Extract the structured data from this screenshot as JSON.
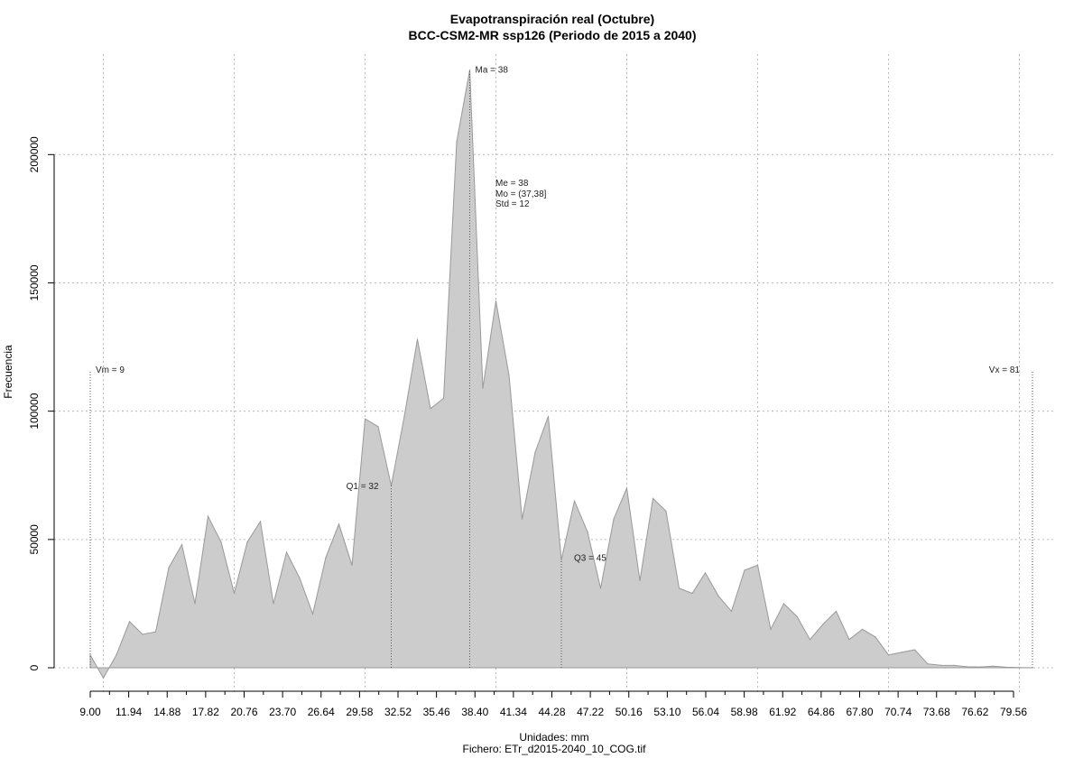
{
  "chart_data": {
    "type": "area",
    "title": "Evapotranspiración real (Octubre)",
    "subtitle": "BCC-CSM2-MR ssp126 (Periodo de 2015 a 2040)",
    "xlabel": "Unidades: mm",
    "ylabel": "Frecuencia",
    "caption": "Fichero: ETr_d2015-2040_10_COG.tif",
    "xlim": [
      9,
      81
    ],
    "ylim": [
      0,
      230000
    ],
    "grid": true,
    "colors": {
      "fill": "#cccccc",
      "stroke": "#999999",
      "grid": "#bbbbbb",
      "marker": "#555555"
    },
    "x_tick_labels": [
      "9.00",
      "11.94",
      "14.88",
      "17.82",
      "20.76",
      "23.70",
      "26.64",
      "29.58",
      "32.52",
      "35.46",
      "38.40",
      "41.34",
      "44.28",
      "47.22",
      "50.16",
      "53.10",
      "56.04",
      "58.98",
      "61.92",
      "64.86",
      "67.80",
      "70.74",
      "73.68",
      "76.62",
      "79.56"
    ],
    "y_tick_labels": [
      "0",
      "50000",
      "100000",
      "150000",
      "200000"
    ],
    "y_ticks": [
      0,
      50000,
      100000,
      150000,
      200000
    ],
    "x": [
      9,
      10,
      11,
      12,
      13,
      14,
      15,
      16,
      17,
      18,
      19,
      20,
      21,
      22,
      23,
      24,
      25,
      26,
      27,
      28,
      29,
      30,
      31,
      32,
      33,
      34,
      35,
      36,
      37,
      38,
      39,
      40,
      41,
      42,
      43,
      44,
      45,
      46,
      47,
      48,
      49,
      50,
      51,
      52,
      53,
      54,
      55,
      56,
      57,
      58,
      59,
      60,
      61,
      62,
      63,
      64,
      65,
      66,
      67,
      68,
      69,
      70,
      71,
      72,
      73,
      74,
      75,
      76,
      77,
      78,
      79,
      80,
      81
    ],
    "values": [
      5000,
      -4000,
      5000,
      18000,
      13000,
      14000,
      39000,
      48000,
      25000,
      59000,
      49000,
      29000,
      49000,
      57000,
      25000,
      45000,
      35000,
      21000,
      43000,
      56000,
      40000,
      97000,
      94000,
      71000,
      98000,
      128000,
      101000,
      105000,
      205000,
      233000,
      109000,
      143000,
      114000,
      58000,
      84000,
      98000,
      42000,
      65000,
      53000,
      31000,
      58000,
      70000,
      34000,
      66000,
      61000,
      31000,
      29000,
      37000,
      28000,
      22000,
      38000,
      40000,
      15000,
      25000,
      20000,
      11000,
      17000,
      22000,
      11000,
      15000,
      12000,
      5000,
      6000,
      7000,
      1500,
      1000,
      900,
      400,
      300,
      600,
      200,
      100,
      0
    ],
    "markers": [
      {
        "name": "Vm",
        "label": "Vm = 9",
        "x": 9,
        "y": 116000
      },
      {
        "name": "Q1",
        "label": "Q1 = 32",
        "x": 32,
        "y": 71000
      },
      {
        "name": "Ma",
        "label": "Ma = 38",
        "x": 38,
        "y": 233000
      },
      {
        "name": "Q3",
        "label": "Q3 = 45",
        "x": 45,
        "y": 42000
      },
      {
        "name": "Vx",
        "label": "Vx = 81",
        "x": 81,
        "y": 116000
      }
    ],
    "stats": [
      "Me = 38",
      "Mo = (37,38]",
      "Std = 12"
    ]
  }
}
